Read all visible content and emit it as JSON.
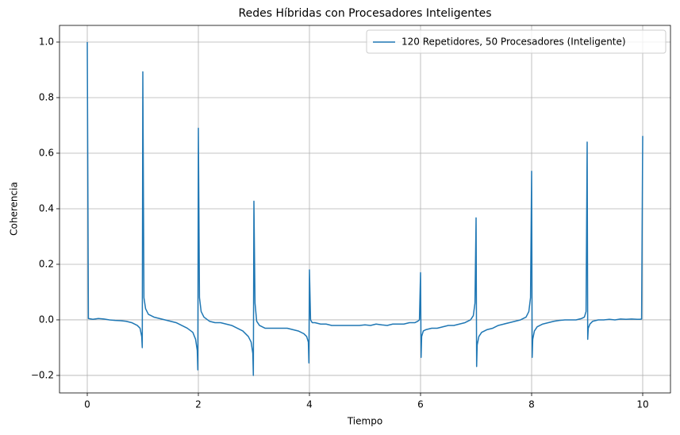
{
  "chart_data": {
    "type": "line",
    "title": "Redes Híbridas con Procesadores Inteligentes",
    "xlabel": "Tiempo",
    "ylabel": "Coherencia",
    "x": [
      0,
      0.02,
      0.1,
      0.2,
      0.3,
      0.4,
      0.5,
      0.6,
      0.7,
      0.8,
      0.9,
      0.95,
      0.98,
      0.99,
      1,
      1.02,
      1.05,
      1.1,
      1.2,
      1.3,
      1.4,
      1.5,
      1.6,
      1.7,
      1.8,
      1.9,
      1.95,
      1.98,
      1.99,
      2,
      2.02,
      2.05,
      2.1,
      2.2,
      2.3,
      2.4,
      2.5,
      2.6,
      2.7,
      2.8,
      2.9,
      2.95,
      2.98,
      2.99,
      3,
      3.02,
      3.05,
      3.1,
      3.2,
      3.3,
      3.4,
      3.5,
      3.6,
      3.7,
      3.8,
      3.9,
      3.95,
      3.98,
      3.99,
      4,
      4.02,
      4.05,
      4.1,
      4.2,
      4.3,
      4.4,
      4.5,
      4.6,
      4.7,
      4.8,
      4.9,
      5,
      5.1,
      5.2,
      5.3,
      5.4,
      5.5,
      5.6,
      5.7,
      5.8,
      5.9,
      5.95,
      5.98,
      6,
      6.01,
      6.02,
      6.05,
      6.1,
      6.2,
      6.3,
      6.4,
      6.5,
      6.6,
      6.7,
      6.8,
      6.9,
      6.95,
      6.98,
      7,
      7.01,
      7.02,
      7.05,
      7.1,
      7.2,
      7.3,
      7.4,
      7.5,
      7.6,
      7.7,
      7.8,
      7.9,
      7.95,
      7.98,
      8,
      8.01,
      8.02,
      8.05,
      8.1,
      8.2,
      8.3,
      8.4,
      8.5,
      8.6,
      8.7,
      8.8,
      8.9,
      8.95,
      8.98,
      9,
      9.01,
      9.02,
      9.05,
      9.1,
      9.2,
      9.3,
      9.4,
      9.5,
      9.6,
      9.7,
      9.8,
      9.9,
      9.95,
      9.98,
      10
    ],
    "series": [
      {
        "name": "120 Repetidores, 50 Procesadores (Inteligente)",
        "color": "#1f77b4",
        "values": [
          1.0,
          0.005,
          0.002,
          0.005,
          0.003,
          0.0,
          -0.002,
          -0.003,
          -0.005,
          -0.01,
          -0.02,
          -0.03,
          -0.06,
          -0.1,
          0.893,
          0.08,
          0.04,
          0.02,
          0.01,
          0.005,
          0.0,
          -0.005,
          -0.01,
          -0.02,
          -0.03,
          -0.045,
          -0.07,
          -0.11,
          -0.18,
          0.69,
          0.08,
          0.03,
          0.01,
          -0.005,
          -0.01,
          -0.01,
          -0.015,
          -0.02,
          -0.03,
          -0.04,
          -0.06,
          -0.08,
          -0.12,
          -0.2,
          0.427,
          0.06,
          -0.005,
          -0.02,
          -0.03,
          -0.03,
          -0.03,
          -0.03,
          -0.03,
          -0.035,
          -0.04,
          -0.05,
          -0.06,
          -0.08,
          -0.155,
          0.18,
          0.0,
          -0.01,
          -0.01,
          -0.015,
          -0.015,
          -0.02,
          -0.02,
          -0.02,
          -0.02,
          -0.02,
          -0.02,
          -0.018,
          -0.02,
          -0.015,
          -0.018,
          -0.02,
          -0.015,
          -0.015,
          -0.015,
          -0.01,
          -0.01,
          -0.005,
          0.0,
          0.17,
          -0.135,
          -0.06,
          -0.04,
          -0.035,
          -0.03,
          -0.03,
          -0.025,
          -0.02,
          -0.02,
          -0.015,
          -0.01,
          0.0,
          0.015,
          0.06,
          0.367,
          -0.168,
          -0.09,
          -0.06,
          -0.045,
          -0.035,
          -0.03,
          -0.02,
          -0.015,
          -0.01,
          -0.005,
          0.0,
          0.01,
          0.03,
          0.08,
          0.535,
          -0.135,
          -0.07,
          -0.04,
          -0.025,
          -0.015,
          -0.01,
          -0.005,
          -0.002,
          0.0,
          0.0,
          0.0,
          0.005,
          0.01,
          0.03,
          0.64,
          -0.07,
          -0.03,
          -0.015,
          -0.005,
          0.0,
          0.0,
          0.002,
          0.0,
          0.003,
          0.002,
          0.003,
          0.002,
          0.002,
          0.003,
          0.662
        ]
      }
    ],
    "xlim": [
      -0.5,
      10.5
    ],
    "xticks": [
      0,
      2,
      4,
      6,
      8,
      10
    ],
    "ylim": [
      -0.263,
      1.06
    ],
    "yticks": [
      {
        "value": -0.2,
        "label": "−0.2"
      },
      {
        "value": 0,
        "label": "0.0"
      },
      {
        "value": 0.2,
        "label": "0.2"
      },
      {
        "value": 0.4,
        "label": "0.4"
      },
      {
        "value": 0.6,
        "label": "0.6"
      },
      {
        "value": 0.8,
        "label": "0.8"
      },
      {
        "value": 1.0,
        "label": "1.0"
      }
    ],
    "grid": true,
    "legend": "upper right"
  }
}
